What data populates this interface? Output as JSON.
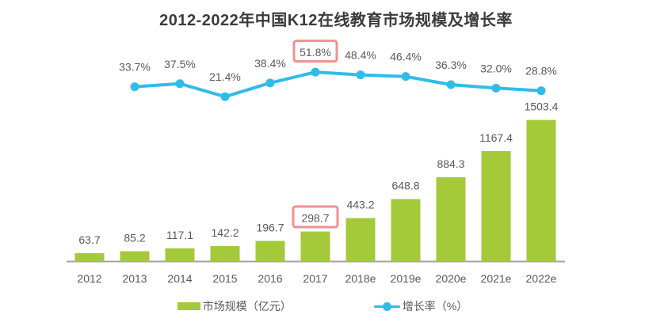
{
  "chart_data": {
    "type": "combo_bar_line",
    "title": "2012-2022年中国K12在线教育市场规模及增长率",
    "categories": [
      "2012",
      "2013",
      "2014",
      "2015",
      "2016",
      "2017",
      "2018e",
      "2019e",
      "2020e",
      "2021e",
      "2022e"
    ],
    "series": [
      {
        "name": "市场规模（亿元）",
        "type": "bar",
        "color": "#a4c939",
        "values": [
          63.7,
          85.2,
          117.1,
          142.2,
          196.7,
          298.7,
          443.2,
          648.8,
          884.3,
          1167.4,
          1503.4
        ],
        "labels": [
          "63.7",
          "85.2",
          "117.1",
          "142.2",
          "196.7",
          "298.7",
          "443.2",
          "648.8",
          "884.3",
          "1167.4",
          "1503.4"
        ],
        "highlighted_index": 5
      },
      {
        "name": "增长率（%）",
        "type": "line",
        "color": "#2fbce9",
        "values": [
          null,
          33.7,
          37.5,
          21.4,
          38.4,
          51.8,
          48.4,
          46.4,
          36.3,
          32.0,
          28.8
        ],
        "labels": [
          "",
          "33.7%",
          "37.5%",
          "21.4%",
          "38.4%",
          "51.8%",
          "48.4%",
          "46.4%",
          "36.3%",
          "32.0%",
          "28.8%"
        ],
        "highlighted_index": 5
      }
    ],
    "legend": [
      {
        "label": "市场规模（亿元）",
        "swatch": "bar",
        "color": "#a4c939"
      },
      {
        "label": "增长率（%）",
        "swatch": "line",
        "color": "#2fbce9"
      }
    ],
    "grid": false,
    "value_axes_visible": false,
    "colors": {
      "highlight_box_border": "#f09092",
      "label_text": "#595959",
      "title_text": "#3b3b3b",
      "axis_line": "#a3a3a3",
      "background": "#ffffff"
    }
  }
}
